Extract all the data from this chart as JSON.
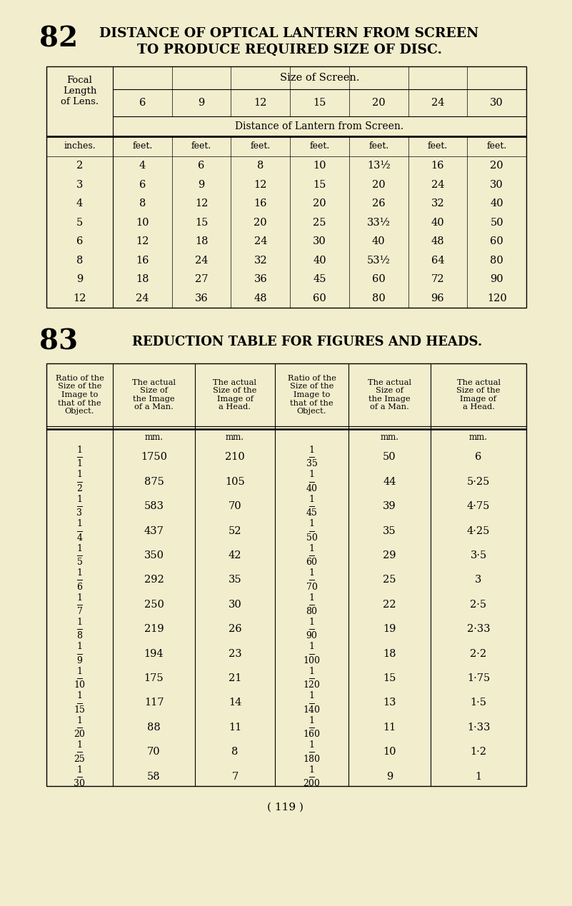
{
  "bg_color": "#f2edcd",
  "title82_num": "82",
  "title82_line1": "DISTANCE OF OPTICAL LANTERN FROM SCREEN",
  "title82_line2": "TO PRODUCE REQUIRED SIZE OF DISC.",
  "title83_num": "83",
  "title83_text": "REDUCTION TABLE FOR FIGURES AND HEADS.",
  "page_num": "( 119 )",
  "table1": {
    "focal_label": "Focal\nLength\nof Lens.",
    "screen_label": "Size of Screen.",
    "col_nums": [
      "6",
      "9",
      "12",
      "15",
      "20",
      "24",
      "30"
    ],
    "dist_label": "Distance of Lantern from Screen.",
    "col_headers": [
      "inches.",
      "feet.",
      "feet.",
      "feet.",
      "feet.",
      "feet.",
      "feet.",
      "feet."
    ],
    "rows": [
      [
        "2",
        "4",
        "6",
        "8",
        "10",
        "13½",
        "16",
        "20"
      ],
      [
        "3",
        "6",
        "9",
        "12",
        "15",
        "20",
        "24",
        "30"
      ],
      [
        "4",
        "8",
        "12",
        "16",
        "20",
        "26",
        "32",
        "40"
      ],
      [
        "5",
        "10",
        "15",
        "20",
        "25",
        "33½",
        "40",
        "50"
      ],
      [
        "6",
        "12",
        "18",
        "24",
        "30",
        "40",
        "48",
        "60"
      ],
      [
        "8",
        "16",
        "24",
        "32",
        "40",
        "53½",
        "64",
        "80"
      ],
      [
        "9",
        "18",
        "27",
        "36",
        "45",
        "60",
        "72",
        "90"
      ],
      [
        "12",
        "24",
        "36",
        "48",
        "60",
        "80",
        "96",
        "120"
      ]
    ]
  },
  "table2": {
    "headers": [
      "Ratio of the\nSize of the\nImage to\nthat of the\nObject.",
      "The actual\nSize of\nthe Image\nof a Man.",
      "The actual\nSize of the\nImage of\na Head.",
      "Ratio of the\nSize of the\nImage to\nthat of the\nObject.",
      "The actual\nSize of\nthe Image\nof a Man.",
      "The actual\nSize of the\nImage of\na Head."
    ],
    "col1_num": [
      "1",
      "1",
      "1",
      "1",
      "1",
      "1",
      "1",
      "1",
      "1",
      "1",
      "1",
      "1",
      "1",
      "1"
    ],
    "col1_den": [
      "1",
      "2",
      "3",
      "4",
      "5",
      "6",
      "7",
      "8",
      "9",
      "10",
      "15",
      "20",
      "25",
      "30"
    ],
    "col2_mm": "mm.",
    "col2": [
      "1750",
      "875",
      "583",
      "437",
      "350",
      "292",
      "250",
      "219",
      "194",
      "175",
      "117",
      "88",
      "70",
      "58"
    ],
    "col3_mm": "mm.",
    "col3": [
      "210",
      "105",
      "70",
      "52",
      "42",
      "35",
      "30",
      "26",
      "23",
      "21",
      "14",
      "11",
      "8",
      "7"
    ],
    "col4_num": [
      "1",
      "1",
      "1",
      "1",
      "1",
      "1",
      "1",
      "1",
      "1",
      "1",
      "1",
      "1",
      "1",
      "1"
    ],
    "col4_den": [
      "35",
      "40",
      "45",
      "50",
      "60",
      "70",
      "80",
      "90",
      "100",
      "120",
      "140",
      "160",
      "180",
      "200"
    ],
    "col5_mm": "mm.",
    "col5": [
      "50",
      "44",
      "39",
      "35",
      "29",
      "25",
      "22",
      "19",
      "18",
      "15",
      "13",
      "11",
      "10",
      "9"
    ],
    "col6_mm": "mm.",
    "col6": [
      "6",
      "5·25",
      "4·75",
      "4·25",
      "3·5",
      "3",
      "2·5",
      "2·33",
      "2·2",
      "1·75",
      "1·5",
      "1·33",
      "1·2",
      "1"
    ]
  }
}
